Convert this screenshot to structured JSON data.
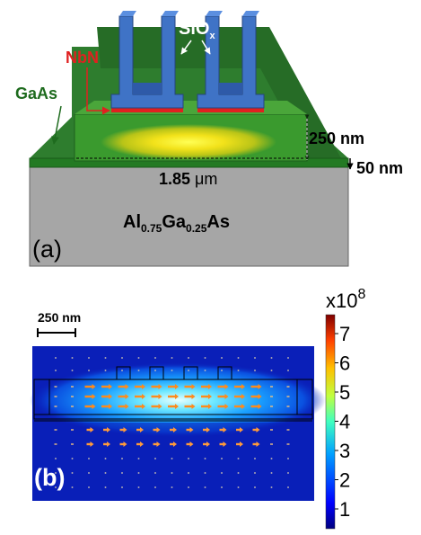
{
  "panel_a": {
    "label": "(a)",
    "labels": {
      "sio": "SiO",
      "sio_sub": "x",
      "nbn": "NbN",
      "gaas": "GaAs",
      "dim_thickness": "250 nm",
      "dim_film": "50 nm",
      "dim_width_prefix": "1.85 ",
      "dim_width_unit": "μm",
      "substrate_al": "Al",
      "substrate_al_sub": "0.75",
      "substrate_ga": "Ga",
      "substrate_ga_sub": "0.25",
      "substrate_as": "As"
    }
  },
  "panel_b": {
    "label": "(b)",
    "scalebar_label": "250 nm",
    "colorbar": {
      "multiplier": "x10",
      "exponent": "8",
      "ticks": [
        "1",
        "2",
        "3",
        "4",
        "5",
        "6",
        "7"
      ]
    }
  },
  "colors": {
    "gaas_green": "#2e7d2e",
    "waveguide_green": "#3a9a2e",
    "substrate_gray": "#a6a6a6",
    "oxide_blue": "#3f73c6",
    "nbn_red": "#e02020",
    "field_bg": "#0a1fb8"
  }
}
